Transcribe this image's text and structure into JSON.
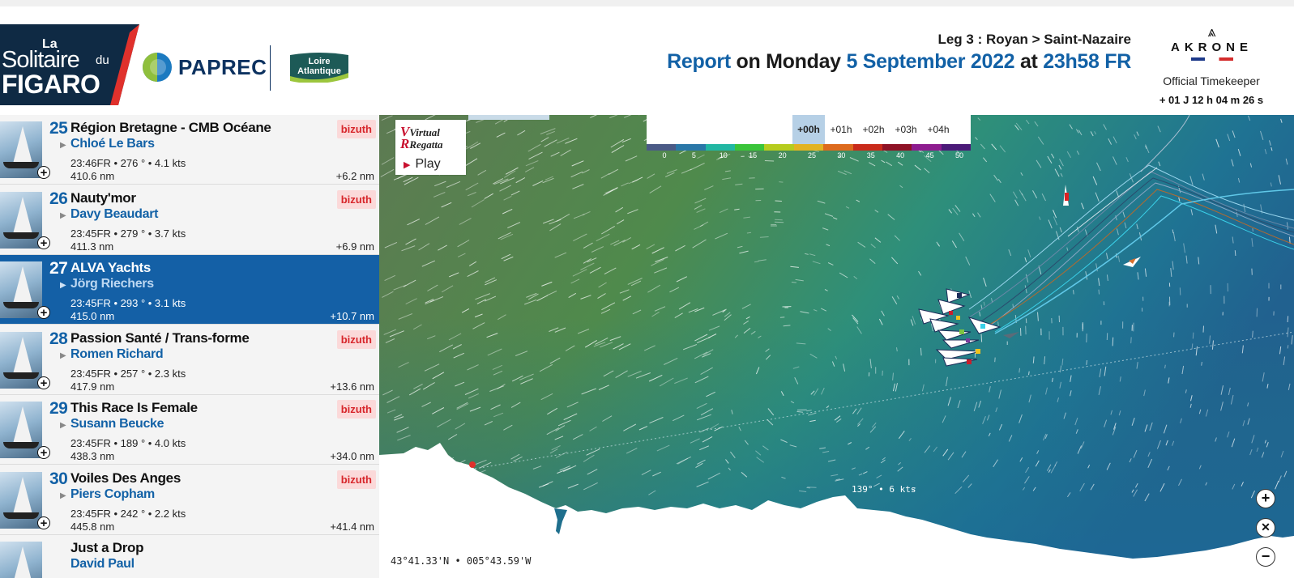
{
  "header": {
    "logo": {
      "line1": "La",
      "line2": "Solitaire",
      "line2b": "du",
      "line3": "FIGARO"
    },
    "sponsor": "PAPREC",
    "region_logo": "Loire Atlantique",
    "leg": "Leg 3 : Royan > Saint-Nazaire",
    "report": {
      "word_report": "Report",
      "word_on": "on",
      "day": "Monday",
      "date": "5 September 2022",
      "word_at": "at",
      "time": "23h58 FR"
    },
    "timekeeper": {
      "brand": "AKRONE",
      "label": "Official Timekeeper",
      "value": "+ 01 J 12 h 04 m 26 s"
    }
  },
  "ranking": [
    {
      "rank": "25",
      "boat": "Région Bretagne - CMB Océane",
      "skipper": "Chloé Le Bars",
      "stats": "23:46FR • 276 ° • 4.1 kts",
      "distance": "410.6 nm",
      "gap": "+6.2 nm",
      "badge": "bizuth",
      "selected": false
    },
    {
      "rank": "26",
      "boat": "Nauty'mor",
      "skipper": "Davy Beaudart",
      "stats": "23:45FR • 279 ° • 3.7 kts",
      "distance": "411.3 nm",
      "gap": "+6.9 nm",
      "badge": "bizuth",
      "selected": false
    },
    {
      "rank": "27",
      "boat": "ALVA Yachts",
      "skipper": "Jörg Riechers",
      "stats": "23:45FR • 293 ° • 3.1 kts",
      "distance": "415.0 nm",
      "gap": "+10.7 nm",
      "badge": "",
      "selected": true
    },
    {
      "rank": "28",
      "boat": "Passion Santé / Trans-forme",
      "skipper": "Romen Richard",
      "stats": "23:45FR • 257 ° • 2.3 kts",
      "distance": "417.9 nm",
      "gap": "+13.6 nm",
      "badge": "bizuth",
      "selected": false
    },
    {
      "rank": "29",
      "boat": "This Race Is Female",
      "skipper": "Susann Beucke",
      "stats": "23:45FR • 189 ° • 4.0 kts",
      "distance": "438.3 nm",
      "gap": "+34.0 nm",
      "badge": "bizuth",
      "selected": false
    },
    {
      "rank": "30",
      "boat": "Voiles Des Anges",
      "skipper": "Piers Copham",
      "stats": "23:45FR • 242 ° • 2.2 kts",
      "distance": "445.8 nm",
      "gap": "+41.4 nm",
      "badge": "bizuth",
      "selected": false
    },
    {
      "rank": "",
      "boat": "Just a Drop",
      "skipper": "David Paul",
      "stats": "",
      "distance": "",
      "gap": "",
      "badge": "",
      "selected": false
    }
  ],
  "map": {
    "virtual_regatta": {
      "line1": "Virtual",
      "line2": "Regatta",
      "play": "Play"
    },
    "time_tabs": [
      "+00h",
      "+01h",
      "+02h",
      "+03h",
      "+04h"
    ],
    "active_tab": "+00h",
    "wind_scale": {
      "labels": [
        "0",
        "5",
        "10",
        "15",
        "20",
        "25",
        "30",
        "35",
        "40",
        "45",
        "50"
      ],
      "colors": [
        "#4b5a86",
        "#2a77a8",
        "#21b7a3",
        "#3ac43a",
        "#b6cc1e",
        "#e2b322",
        "#dd6a1d",
        "#c92a1a",
        "#8e1225",
        "#8d1c8f",
        "#4b1a78"
      ]
    },
    "cursor_readout": "139° • 6 kts",
    "coordinates": "43°41.33'N • 005°43.59'W",
    "colors": {
      "sea_green": "#4f7a4e",
      "sea_blue": "#1f6f8d",
      "land": "#ffffff"
    }
  },
  "controls": {
    "zoom_in": "+",
    "close": "✕",
    "zoom_out": "−"
  }
}
